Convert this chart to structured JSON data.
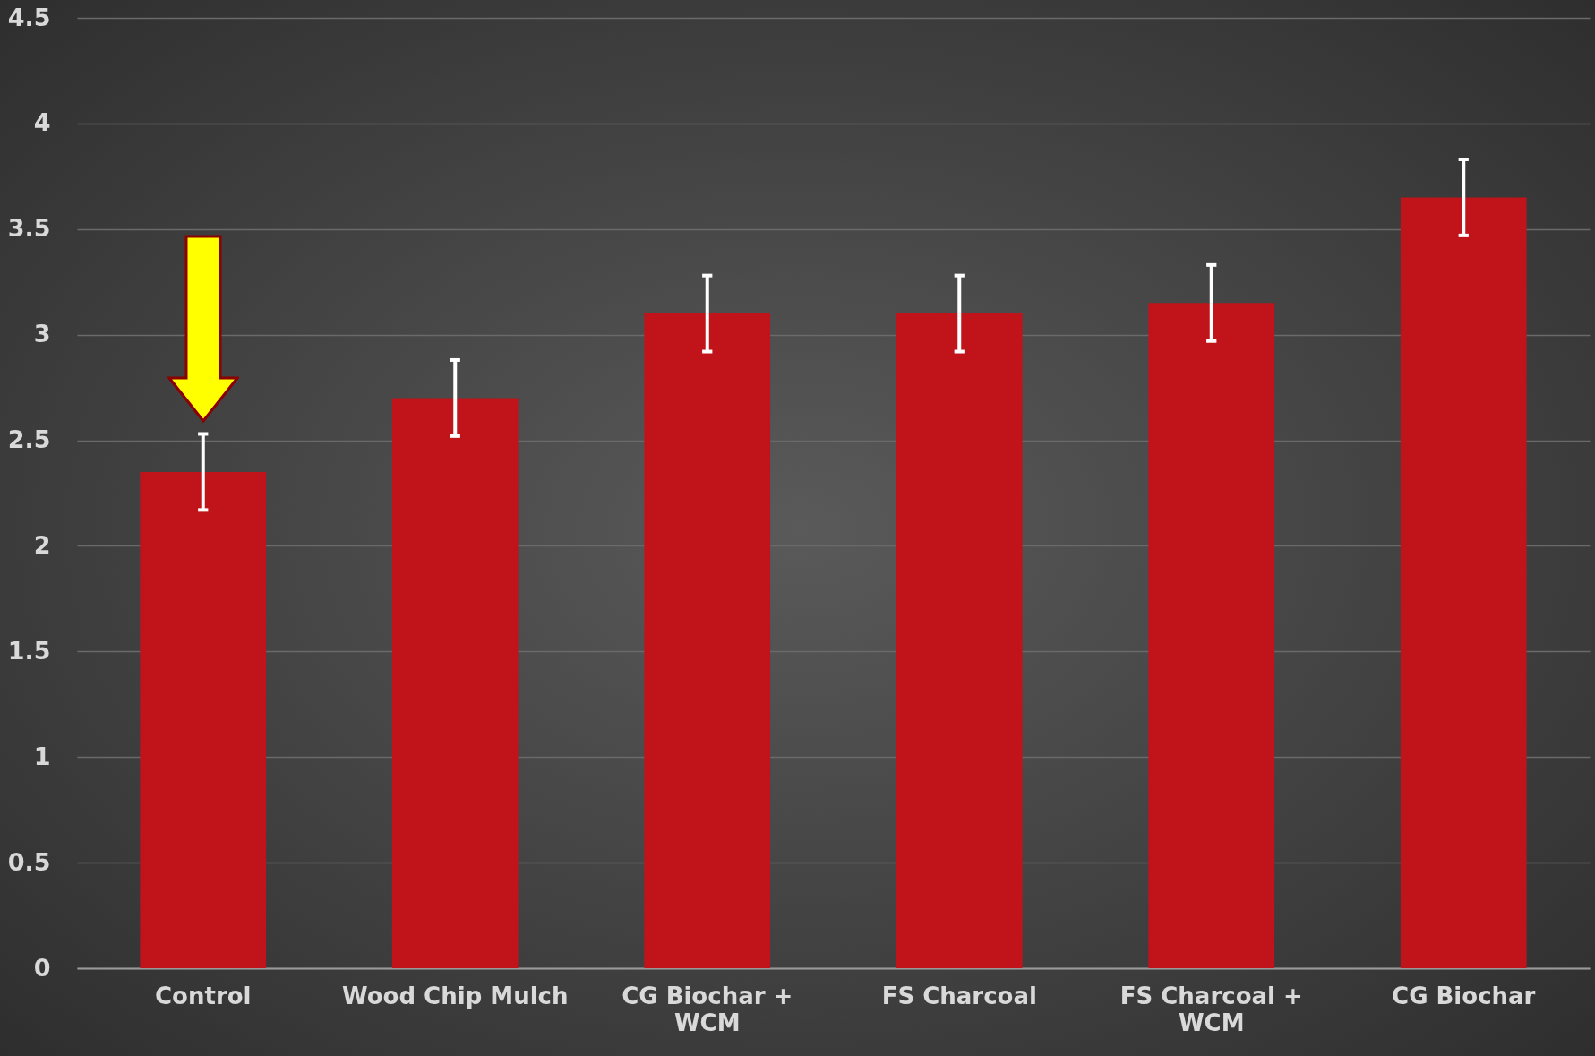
{
  "chart_data": {
    "type": "bar",
    "categories": [
      "Control",
      "Wood Chip Mulch",
      "CG Biochar + WCM",
      "FS Charcoal",
      "FS Charcoal + WCM",
      "CG Biochar"
    ],
    "values": [
      2.35,
      2.7,
      3.1,
      3.1,
      3.15,
      3.65
    ],
    "errors": [
      0.18,
      0.18,
      0.18,
      0.18,
      0.18,
      0.18
    ],
    "color": "#c0141a",
    "ylim": [
      0,
      4.5
    ],
    "yticks": [
      0,
      0.5,
      1,
      1.5,
      2,
      2.5,
      3,
      3.5,
      4,
      4.5
    ],
    "grid": "y"
  }
}
